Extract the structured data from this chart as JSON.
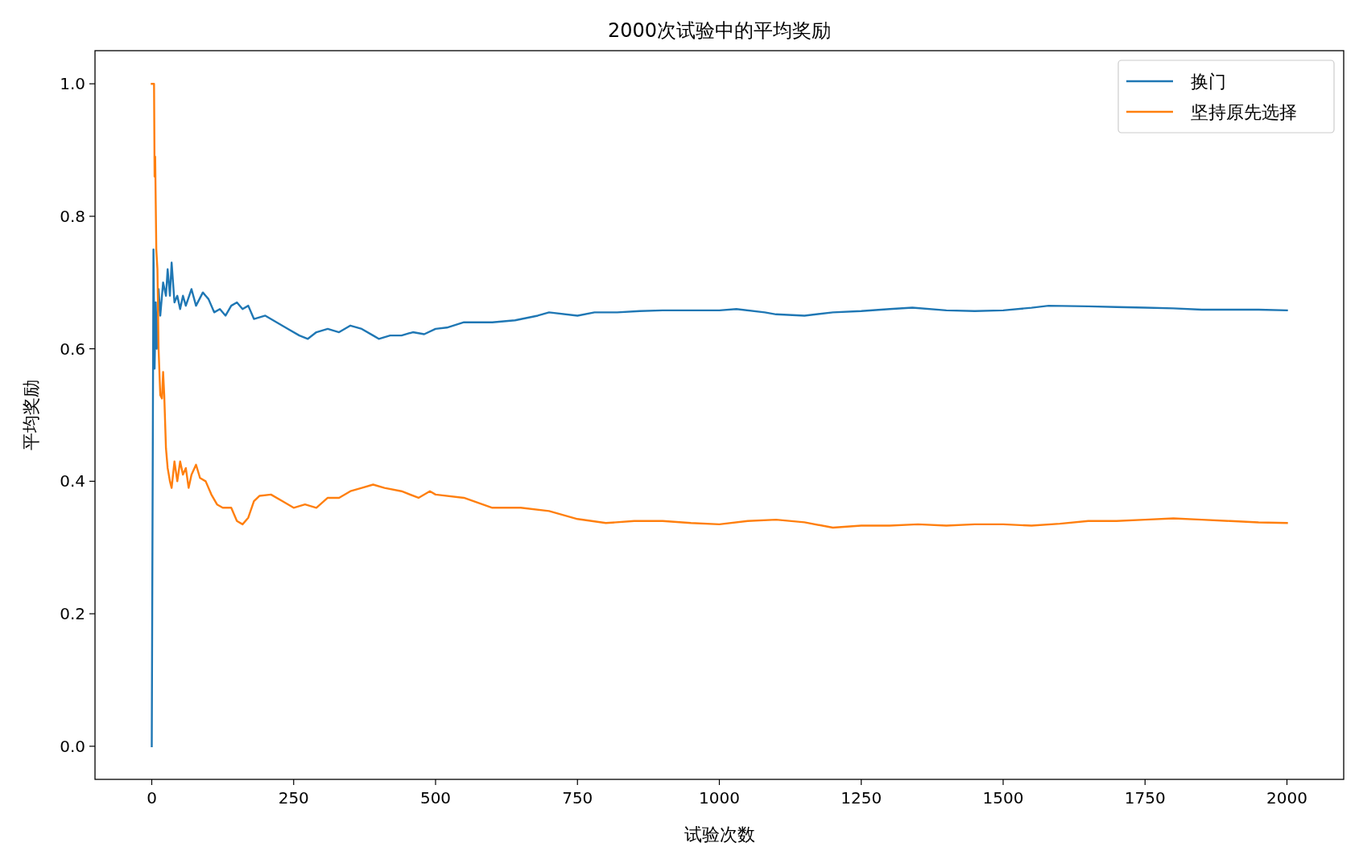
{
  "chart_data": {
    "type": "line",
    "title": "2000次试验中的平均奖励",
    "xlabel": "试验次数",
    "ylabel": "平均奖励",
    "xlim": [
      -100,
      2100
    ],
    "ylim": [
      -0.05,
      1.05
    ],
    "xticks": [
      0,
      250,
      500,
      750,
      1000,
      1250,
      1500,
      1750,
      2000
    ],
    "yticks": [
      {
        "value": 0,
        "label": "0.0"
      },
      {
        "value": 0.2,
        "label": "0.2"
      },
      {
        "value": 0.4,
        "label": "0.4"
      },
      {
        "value": 0.6,
        "label": "0.6"
      },
      {
        "value": 0.8,
        "label": "0.8"
      },
      {
        "value": 1,
        "label": "1.0"
      }
    ],
    "legend": "top right",
    "series": [
      {
        "name": "换门",
        "color": "#1f77b4",
        "x": [
          0,
          3,
          5,
          7,
          9,
          12,
          15,
          20,
          25,
          28,
          32,
          35,
          40,
          45,
          50,
          55,
          60,
          70,
          78,
          90,
          100,
          110,
          120,
          130,
          140,
          150,
          160,
          170,
          180,
          200,
          220,
          240,
          260,
          275,
          290,
          310,
          330,
          350,
          370,
          390,
          400,
          420,
          440,
          460,
          480,
          500,
          520,
          550,
          600,
          640,
          680,
          700,
          750,
          780,
          820,
          860,
          900,
          950,
          1000,
          1030,
          1080,
          1100,
          1150,
          1200,
          1250,
          1300,
          1340,
          1400,
          1450,
          1500,
          1550,
          1580,
          1650,
          1700,
          1750,
          1800,
          1850,
          1900,
          1950,
          2000
        ],
        "values": [
          0,
          0.75,
          0.57,
          0.67,
          0.6,
          0.69,
          0.65,
          0.7,
          0.68,
          0.72,
          0.68,
          0.73,
          0.67,
          0.68,
          0.66,
          0.68,
          0.665,
          0.69,
          0.665,
          0.685,
          0.675,
          0.655,
          0.66,
          0.65,
          0.665,
          0.67,
          0.66,
          0.665,
          0.645,
          0.65,
          0.64,
          0.63,
          0.62,
          0.615,
          0.625,
          0.63,
          0.625,
          0.635,
          0.63,
          0.62,
          0.615,
          0.62,
          0.62,
          0.625,
          0.622,
          0.63,
          0.632,
          0.64,
          0.64,
          0.643,
          0.65,
          0.655,
          0.65,
          0.655,
          0.655,
          0.657,
          0.658,
          0.658,
          0.658,
          0.66,
          0.655,
          0.652,
          0.65,
          0.655,
          0.657,
          0.66,
          0.662,
          0.658,
          0.657,
          0.658,
          0.662,
          0.665,
          0.664,
          0.663,
          0.662,
          0.661,
          0.659,
          0.659,
          0.659,
          0.658
        ]
      },
      {
        "name": "坚持原先选择",
        "color": "#ff7f0e",
        "x": [
          0,
          4,
          5,
          6,
          8,
          10,
          12,
          15,
          18,
          20,
          22,
          25,
          28,
          32,
          35,
          40,
          45,
          50,
          55,
          60,
          65,
          70,
          78,
          85,
          95,
          105,
          115,
          125,
          140,
          150,
          160,
          170,
          180,
          190,
          210,
          230,
          250,
          270,
          290,
          310,
          330,
          350,
          370,
          390,
          410,
          440,
          470,
          490,
          500,
          550,
          600,
          650,
          700,
          750,
          800,
          850,
          900,
          950,
          1000,
          1050,
          1100,
          1150,
          1200,
          1250,
          1300,
          1350,
          1400,
          1450,
          1500,
          1550,
          1600,
          1650,
          1700,
          1750,
          1800,
          1850,
          1900,
          1950,
          2000
        ],
        "values": [
          1,
          1,
          0.86,
          0.89,
          0.75,
          0.72,
          0.6,
          0.53,
          0.525,
          0.565,
          0.53,
          0.45,
          0.42,
          0.4,
          0.39,
          0.43,
          0.4,
          0.43,
          0.41,
          0.42,
          0.39,
          0.41,
          0.425,
          0.405,
          0.4,
          0.38,
          0.365,
          0.36,
          0.36,
          0.34,
          0.335,
          0.345,
          0.37,
          0.378,
          0.38,
          0.37,
          0.36,
          0.365,
          0.36,
          0.375,
          0.375,
          0.385,
          0.39,
          0.395,
          0.39,
          0.385,
          0.375,
          0.385,
          0.38,
          0.375,
          0.36,
          0.36,
          0.355,
          0.343,
          0.337,
          0.34,
          0.34,
          0.337,
          0.335,
          0.34,
          0.342,
          0.338,
          0.33,
          0.333,
          0.333,
          0.335,
          0.333,
          0.335,
          0.335,
          0.333,
          0.336,
          0.34,
          0.34,
          0.342,
          0.344,
          0.342,
          0.34,
          0.338,
          0.337
        ]
      }
    ]
  }
}
